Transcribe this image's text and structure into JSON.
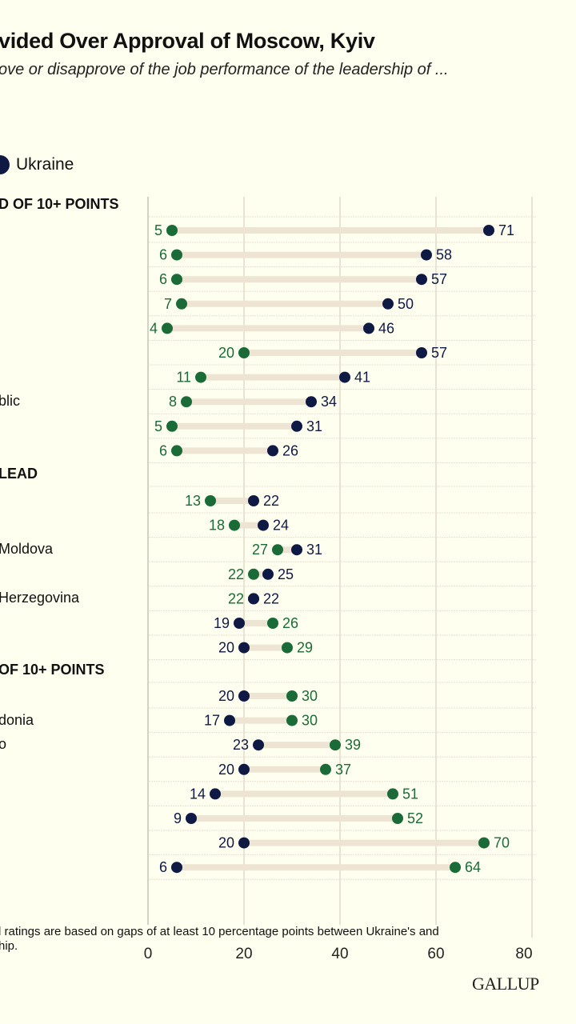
{
  "header": {
    "title": "vided Over Approval of Moscow, Kyiv",
    "subtitle": "ove or disapprove of the job performance of the leadership of ..."
  },
  "legend": {
    "items": [
      {
        "label": "Ukraine",
        "color": "#0f1a44"
      }
    ]
  },
  "colors": {
    "russia": "#1a6b37",
    "ukraine": "#0f1a44",
    "connector": "#ede4d3",
    "gridline": "#cfcab8",
    "rowline": "#e7e2d2",
    "background": "#fffff0"
  },
  "groups": [
    {
      "header": "D OF 10+ POINTS"
    },
    {
      "header": "LEAD"
    },
    {
      "header": " OF 10+ POINTS"
    }
  ],
  "footnote": {
    "line1": "l ratings are based on gaps of at least 10 percentage points between Ukraine's and",
    "line2": "hip."
  },
  "axis": {
    "ticks": [
      "0",
      "20",
      "40",
      "60",
      "80"
    ]
  },
  "branding": {
    "logo_text": "GALLUP"
  },
  "chart_data": {
    "type": "dumbbell",
    "title": "...vided Over Approval of Moscow, Kyiv",
    "subtitle": "...ove or disapprove of the job performance of the leadership of ...",
    "xlabel": "",
    "xlim": [
      0,
      80
    ],
    "xticks": [
      0,
      20,
      40,
      60,
      80
    ],
    "grid": true,
    "legend": [
      "Ukraine"
    ],
    "series_colors": {
      "green_series": "#1a6b37",
      "Ukraine": "#0f1a44"
    },
    "groups": [
      {
        "header": "D OF 10+ POINTS",
        "rows": [
          {
            "label": "",
            "green": 5,
            "ukraine": 71
          },
          {
            "label": "",
            "green": 6,
            "ukraine": 58
          },
          {
            "label": "",
            "green": 6,
            "ukraine": 57
          },
          {
            "label": "",
            "green": 7,
            "ukraine": 50
          },
          {
            "label": "",
            "green": 4,
            "ukraine": 46
          },
          {
            "label": "",
            "green": 20,
            "ukraine": 57
          },
          {
            "label": "",
            "green": 11,
            "ukraine": 41
          },
          {
            "label": "blic",
            "green": 8,
            "ukraine": 34
          },
          {
            "label": "",
            "green": 5,
            "ukraine": 31
          },
          {
            "label": "",
            "green": 6,
            "ukraine": 26
          }
        ]
      },
      {
        "header": "LEAD",
        "rows": [
          {
            "label": "",
            "green": 13,
            "ukraine": 22
          },
          {
            "label": "",
            "green": 18,
            "ukraine": 24
          },
          {
            "label": "Moldova",
            "green": 27,
            "ukraine": 31
          },
          {
            "label": "",
            "green": 22,
            "ukraine": 25
          },
          {
            "label": "Herzegovina",
            "green": 22,
            "ukraine": 22
          },
          {
            "label": "",
            "green": 26,
            "ukraine": 19
          },
          {
            "label": "",
            "green": 29,
            "ukraine": 20
          }
        ]
      },
      {
        "header": " OF 10+ POINTS",
        "rows": [
          {
            "label": "",
            "green": 30,
            "ukraine": 20
          },
          {
            "label": "donia",
            "green": 30,
            "ukraine": 17
          },
          {
            "label": "o",
            "green": 39,
            "ukraine": 23
          },
          {
            "label": "",
            "green": 37,
            "ukraine": 20
          },
          {
            "label": "",
            "green": 51,
            "ukraine": 14
          },
          {
            "label": "",
            "green": 52,
            "ukraine": 9
          },
          {
            "label": "",
            "green": 70,
            "ukraine": 20
          },
          {
            "label": "",
            "green": 64,
            "ukraine": 6
          }
        ]
      }
    ]
  }
}
